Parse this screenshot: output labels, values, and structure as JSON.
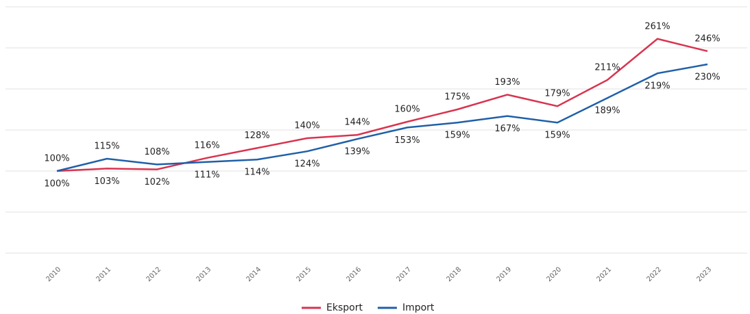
{
  "chart_data": {
    "type": "line",
    "categories": [
      "2010",
      "2011",
      "2012",
      "2013",
      "2014",
      "2015",
      "2016",
      "2017",
      "2018",
      "2019",
      "2020",
      "2021",
      "2022",
      "2023"
    ],
    "series": [
      {
        "name": "Eksport",
        "color": "#d9334f",
        "values": [
          100,
          103,
          102,
          116,
          128,
          140,
          144,
          160,
          175,
          193,
          179,
          211,
          261,
          246
        ],
        "value_labels": [
          "100%",
          "103%",
          "102%",
          "116%",
          "128%",
          "140%",
          "144%",
          "160%",
          "175%",
          "193%",
          "179%",
          "211%",
          "261%",
          "246%"
        ]
      },
      {
        "name": "Import",
        "color": "#1f5fa8",
        "values": [
          100,
          115,
          108,
          111,
          114,
          124,
          139,
          153,
          159,
          167,
          159,
          189,
          219,
          230
        ],
        "value_labels": [
          "100%",
          "115%",
          "108%",
          "111%",
          "114%",
          "124%",
          "139%",
          "153%",
          "159%",
          "167%",
          "159%",
          "189%",
          "219%",
          "230%"
        ]
      }
    ],
    "ylim": [
      0,
      300
    ],
    "yticks": [
      0,
      50,
      100,
      150,
      200,
      250,
      300
    ],
    "grid": true,
    "legend": "bottom"
  }
}
